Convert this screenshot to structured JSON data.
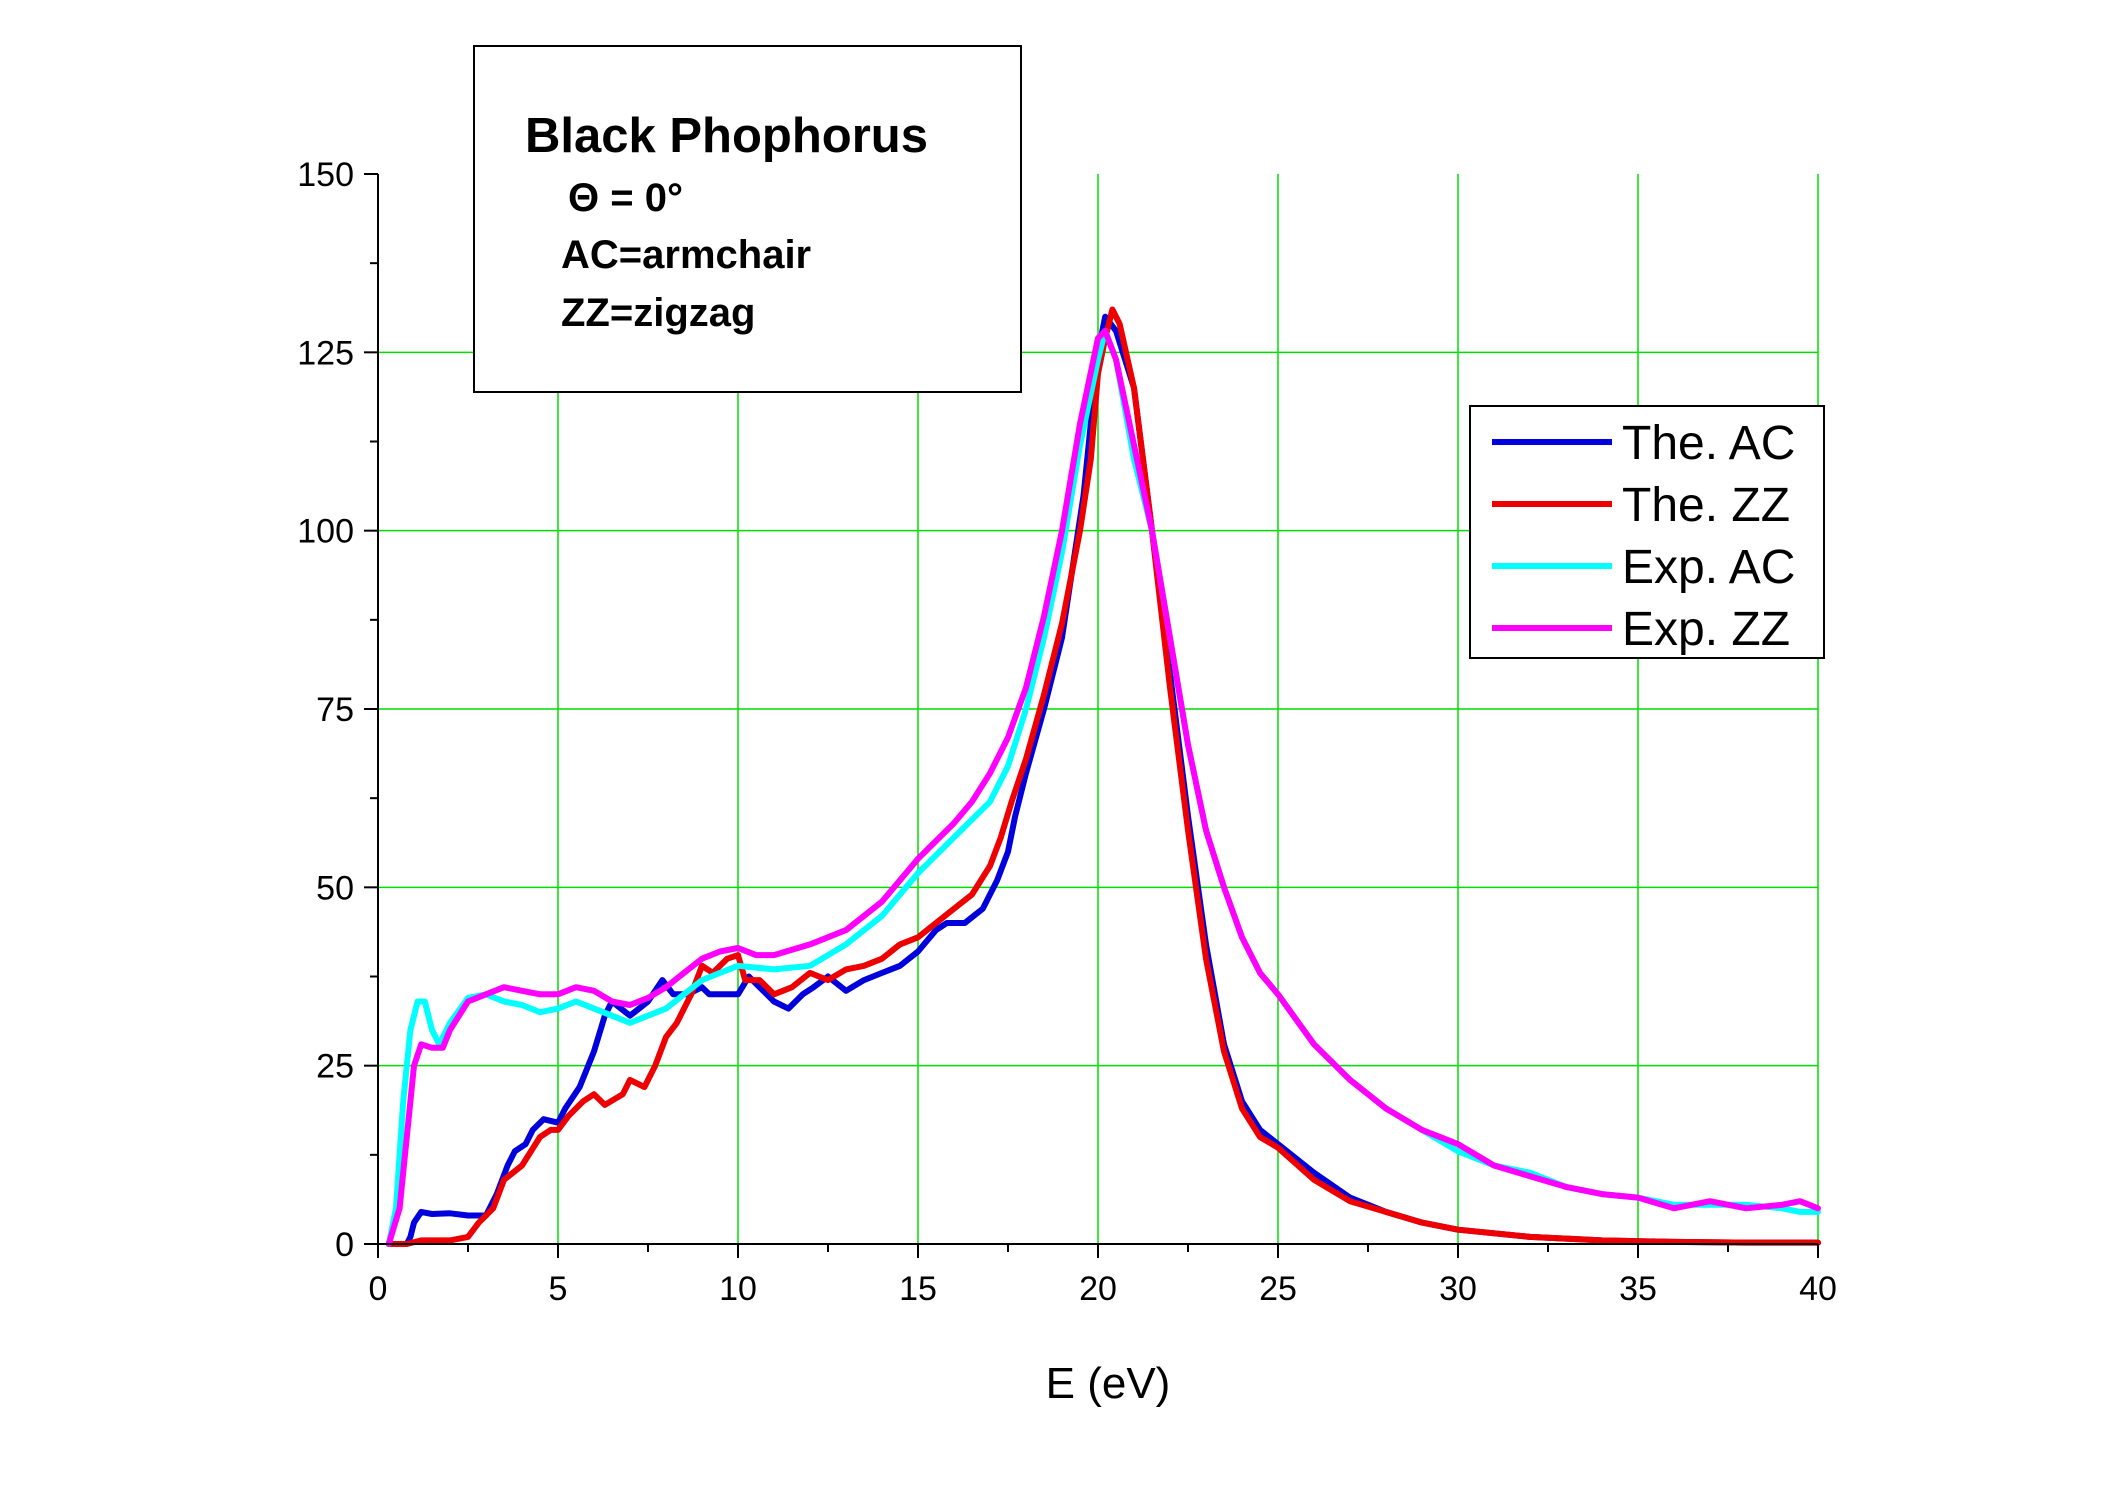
{
  "colors": {
    "grid": "#00dd00",
    "axis": "#000000",
    "background": "#ffffff",
    "the_ac": "#0000dd",
    "the_zz": "#ee0000",
    "exp_ac": "#00ffff",
    "exp_zz": "#ff00ff"
  },
  "chart_data": {
    "type": "line",
    "title": "",
    "xlabel": "E (eV)",
    "ylabel": "",
    "xlim": [
      0,
      40
    ],
    "ylim": [
      0,
      150
    ],
    "x_ticks": [
      0,
      5,
      10,
      15,
      20,
      25,
      30,
      35,
      40
    ],
    "y_ticks": [
      0,
      25,
      50,
      75,
      100,
      125,
      150
    ],
    "x_tick_labels": [
      "0",
      "5",
      "10",
      "15",
      "20",
      "25",
      "30",
      "35",
      "40"
    ],
    "y_tick_labels": [
      "0",
      "25",
      "50",
      "75",
      "100",
      "125",
      "150"
    ],
    "grid": true,
    "legend_position": "right",
    "annotation": {
      "title": "Black Phophorus",
      "lines": [
        "Θ = 0°",
        "AC=armchair",
        "ZZ=zigzag"
      ]
    },
    "series": [
      {
        "name": "The. AC",
        "color": "#0000dd",
        "points": [
          [
            0.3,
            0
          ],
          [
            0.8,
            0
          ],
          [
            0.9,
            1
          ],
          [
            1.0,
            3
          ],
          [
            1.2,
            4.5
          ],
          [
            1.5,
            4.2
          ],
          [
            2.0,
            4.3
          ],
          [
            2.5,
            4
          ],
          [
            3.0,
            4
          ],
          [
            3.3,
            7
          ],
          [
            3.6,
            11
          ],
          [
            3.8,
            13
          ],
          [
            4.1,
            14
          ],
          [
            4.3,
            16
          ],
          [
            4.6,
            17.5
          ],
          [
            5.0,
            17
          ],
          [
            5.2,
            19
          ],
          [
            5.6,
            22
          ],
          [
            6.0,
            27
          ],
          [
            6.3,
            32
          ],
          [
            6.5,
            34
          ],
          [
            7.0,
            32
          ],
          [
            7.5,
            34
          ],
          [
            7.9,
            37
          ],
          [
            8.2,
            35
          ],
          [
            8.6,
            35
          ],
          [
            9.0,
            36
          ],
          [
            9.2,
            35
          ],
          [
            9.6,
            35
          ],
          [
            10.0,
            35
          ],
          [
            10.3,
            37.5
          ],
          [
            10.6,
            36
          ],
          [
            11.0,
            34
          ],
          [
            11.4,
            33
          ],
          [
            11.8,
            35
          ],
          [
            12.1,
            36
          ],
          [
            12.5,
            37.5
          ],
          [
            13.0,
            35.5
          ],
          [
            13.5,
            37
          ],
          [
            14.0,
            38
          ],
          [
            14.5,
            39
          ],
          [
            15.0,
            41
          ],
          [
            15.5,
            44
          ],
          [
            15.8,
            45
          ],
          [
            16.3,
            45
          ],
          [
            16.8,
            47
          ],
          [
            17.2,
            51
          ],
          [
            17.5,
            55
          ],
          [
            17.7,
            60
          ],
          [
            18.0,
            66
          ],
          [
            18.5,
            75
          ],
          [
            19.0,
            85
          ],
          [
            19.3,
            95
          ],
          [
            19.6,
            105
          ],
          [
            19.8,
            115
          ],
          [
            20.0,
            125
          ],
          [
            20.2,
            130
          ],
          [
            20.5,
            128
          ],
          [
            21.0,
            120
          ],
          [
            21.5,
            100
          ],
          [
            22.0,
            80
          ],
          [
            22.5,
            60
          ],
          [
            23.0,
            42
          ],
          [
            23.5,
            28
          ],
          [
            24.0,
            20
          ],
          [
            24.5,
            16
          ],
          [
            25.0,
            14
          ],
          [
            26.0,
            10
          ],
          [
            27.0,
            6.5
          ],
          [
            28.0,
            4.5
          ],
          [
            29.0,
            3
          ],
          [
            30.0,
            2
          ],
          [
            32.0,
            1
          ],
          [
            34.0,
            0.5
          ],
          [
            36.0,
            0.3
          ],
          [
            38.0,
            0.2
          ],
          [
            40.0,
            0.2
          ]
        ]
      },
      {
        "name": "The. ZZ",
        "color": "#ee0000",
        "points": [
          [
            0.3,
            0
          ],
          [
            0.8,
            0
          ],
          [
            1.2,
            0.5
          ],
          [
            2.0,
            0.5
          ],
          [
            2.5,
            1
          ],
          [
            2.8,
            3
          ],
          [
            3.0,
            4
          ],
          [
            3.2,
            5
          ],
          [
            3.5,
            9
          ],
          [
            4.0,
            11
          ],
          [
            4.5,
            15
          ],
          [
            4.8,
            16
          ],
          [
            5.0,
            16
          ],
          [
            5.3,
            18
          ],
          [
            5.7,
            20
          ],
          [
            6.0,
            21
          ],
          [
            6.3,
            19.5
          ],
          [
            6.8,
            21
          ],
          [
            7.0,
            23
          ],
          [
            7.4,
            22
          ],
          [
            7.7,
            25
          ],
          [
            8.0,
            29
          ],
          [
            8.3,
            31
          ],
          [
            8.7,
            35
          ],
          [
            9.0,
            39
          ],
          [
            9.3,
            38
          ],
          [
            9.7,
            40
          ],
          [
            10.0,
            40.5
          ],
          [
            10.2,
            37
          ],
          [
            10.6,
            37
          ],
          [
            11.0,
            35
          ],
          [
            11.5,
            36
          ],
          [
            12.0,
            38
          ],
          [
            12.5,
            37
          ],
          [
            13.0,
            38.5
          ],
          [
            13.5,
            39
          ],
          [
            14.0,
            40
          ],
          [
            14.5,
            42
          ],
          [
            15.0,
            43
          ],
          [
            15.5,
            45
          ],
          [
            16.0,
            47
          ],
          [
            16.5,
            49
          ],
          [
            17.0,
            53
          ],
          [
            17.3,
            57
          ],
          [
            17.6,
            62
          ],
          [
            18.0,
            68
          ],
          [
            18.5,
            77
          ],
          [
            19.0,
            87
          ],
          [
            19.5,
            100
          ],
          [
            19.8,
            110
          ],
          [
            20.0,
            122
          ],
          [
            20.2,
            127
          ],
          [
            20.4,
            131
          ],
          [
            20.6,
            129
          ],
          [
            21.0,
            120
          ],
          [
            21.5,
            100
          ],
          [
            22.0,
            78
          ],
          [
            22.5,
            58
          ],
          [
            23.0,
            40
          ],
          [
            23.5,
            27
          ],
          [
            24.0,
            19
          ],
          [
            24.5,
            15
          ],
          [
            25.0,
            13.5
          ],
          [
            26.0,
            9
          ],
          [
            27.0,
            6
          ],
          [
            28.0,
            4.5
          ],
          [
            29.0,
            3
          ],
          [
            30.0,
            2
          ],
          [
            32.0,
            1
          ],
          [
            34.0,
            0.5
          ],
          [
            36.0,
            0.3
          ],
          [
            38.0,
            0.2
          ],
          [
            40.0,
            0.2
          ]
        ]
      },
      {
        "name": "Exp. AC",
        "color": "#00ffff",
        "points": [
          [
            0.3,
            0
          ],
          [
            0.5,
            5
          ],
          [
            0.7,
            20
          ],
          [
            0.9,
            30
          ],
          [
            1.1,
            34
          ],
          [
            1.3,
            34
          ],
          [
            1.5,
            30
          ],
          [
            1.7,
            28
          ],
          [
            2.0,
            31
          ],
          [
            2.5,
            34.5
          ],
          [
            3.0,
            35
          ],
          [
            3.5,
            34
          ],
          [
            4.0,
            33.5
          ],
          [
            4.5,
            32.5
          ],
          [
            5.0,
            33
          ],
          [
            5.5,
            34
          ],
          [
            6.0,
            33
          ],
          [
            6.5,
            32
          ],
          [
            7.0,
            31
          ],
          [
            7.5,
            32
          ],
          [
            8.0,
            33
          ],
          [
            8.5,
            35
          ],
          [
            9.0,
            37
          ],
          [
            9.5,
            38
          ],
          [
            10.0,
            39
          ],
          [
            11.0,
            38.5
          ],
          [
            12.0,
            39
          ],
          [
            13.0,
            42
          ],
          [
            14.0,
            46
          ],
          [
            15.0,
            52
          ],
          [
            16.0,
            57
          ],
          [
            17.0,
            62
          ],
          [
            17.5,
            67
          ],
          [
            18.0,
            75
          ],
          [
            18.5,
            85
          ],
          [
            19.0,
            97
          ],
          [
            19.5,
            112
          ],
          [
            20.0,
            124
          ],
          [
            20.2,
            128
          ],
          [
            20.5,
            124
          ],
          [
            21.0,
            110
          ],
          [
            21.5,
            100
          ],
          [
            22.0,
            85
          ],
          [
            22.5,
            70
          ],
          [
            23.0,
            58
          ],
          [
            23.5,
            50
          ],
          [
            24.0,
            43
          ],
          [
            24.5,
            38
          ],
          [
            25.0,
            35
          ],
          [
            26.0,
            28
          ],
          [
            27.0,
            23
          ],
          [
            28.0,
            19
          ],
          [
            29.0,
            16
          ],
          [
            30.0,
            13
          ],
          [
            31.0,
            11
          ],
          [
            32.0,
            10
          ],
          [
            33.0,
            8
          ],
          [
            34.0,
            7
          ],
          [
            35.0,
            6.5
          ],
          [
            36.0,
            5.5
          ],
          [
            37.0,
            5.5
          ],
          [
            38.0,
            5.5
          ],
          [
            39.0,
            5
          ],
          [
            39.5,
            4.5
          ],
          [
            40.0,
            4.5
          ]
        ]
      },
      {
        "name": "Exp. ZZ",
        "color": "#ff00ff",
        "points": [
          [
            0.3,
            0
          ],
          [
            0.6,
            5
          ],
          [
            0.8,
            15
          ],
          [
            1.0,
            25
          ],
          [
            1.2,
            28
          ],
          [
            1.5,
            27.5
          ],
          [
            1.8,
            27.5
          ],
          [
            2.0,
            30
          ],
          [
            2.5,
            34
          ],
          [
            3.0,
            35
          ],
          [
            3.5,
            36
          ],
          [
            4.0,
            35.5
          ],
          [
            4.5,
            35
          ],
          [
            5.0,
            35
          ],
          [
            5.5,
            36
          ],
          [
            6.0,
            35.5
          ],
          [
            6.5,
            34
          ],
          [
            7.0,
            33.5
          ],
          [
            7.5,
            34.5
          ],
          [
            8.0,
            36
          ],
          [
            8.5,
            38
          ],
          [
            9.0,
            40
          ],
          [
            9.5,
            41
          ],
          [
            10.0,
            41.5
          ],
          [
            10.5,
            40.5
          ],
          [
            11.0,
            40.5
          ],
          [
            12.0,
            42
          ],
          [
            13.0,
            44
          ],
          [
            14.0,
            48
          ],
          [
            15.0,
            54
          ],
          [
            16.0,
            59
          ],
          [
            16.5,
            62
          ],
          [
            17.0,
            66
          ],
          [
            17.5,
            71
          ],
          [
            18.0,
            78
          ],
          [
            18.5,
            88
          ],
          [
            19.0,
            100
          ],
          [
            19.5,
            115
          ],
          [
            20.0,
            127
          ],
          [
            20.2,
            128
          ],
          [
            20.5,
            124
          ],
          [
            21.0,
            112
          ],
          [
            21.5,
            100
          ],
          [
            22.0,
            85
          ],
          [
            22.5,
            70
          ],
          [
            23.0,
            58
          ],
          [
            23.5,
            50
          ],
          [
            24.0,
            43
          ],
          [
            24.5,
            38
          ],
          [
            25.0,
            35
          ],
          [
            26.0,
            28
          ],
          [
            27.0,
            23
          ],
          [
            28.0,
            19
          ],
          [
            29.0,
            16
          ],
          [
            30.0,
            14
          ],
          [
            31.0,
            11
          ],
          [
            32.0,
            9.5
          ],
          [
            33.0,
            8
          ],
          [
            34.0,
            7
          ],
          [
            35.0,
            6.5
          ],
          [
            36.0,
            5
          ],
          [
            37.0,
            6
          ],
          [
            38.0,
            5
          ],
          [
            39.0,
            5.5
          ],
          [
            39.5,
            6
          ],
          [
            40.0,
            5
          ]
        ]
      }
    ]
  }
}
